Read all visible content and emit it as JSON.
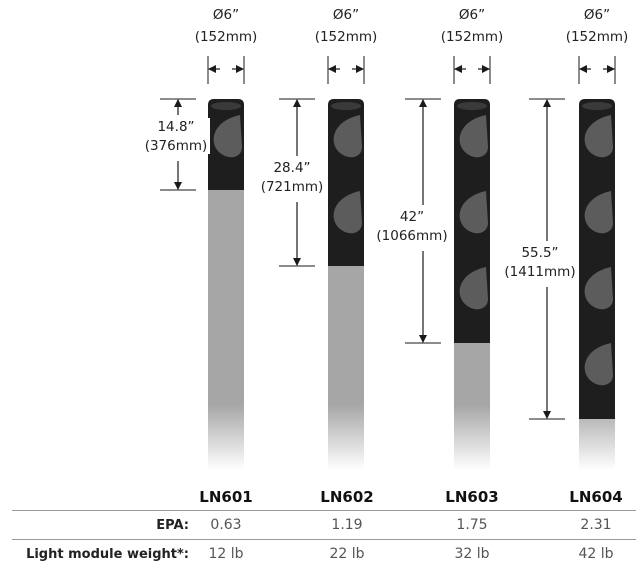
{
  "products": [
    {
      "model": "LN601",
      "diameter_in": "Ø6”",
      "diameter_mm": "(152mm)",
      "height_in": "14.8”",
      "height_mm": "(376mm)",
      "epa": "0.63",
      "weight": "12 lb",
      "cutouts": 1
    },
    {
      "model": "LN602",
      "diameter_in": "Ø6”",
      "diameter_mm": "(152mm)",
      "height_in": "28.4”",
      "height_mm": "(721mm)",
      "epa": "1.19",
      "weight": "22 lb",
      "cutouts": 2
    },
    {
      "model": "LN603",
      "diameter_in": "Ø6”",
      "diameter_mm": "(152mm)",
      "height_in": "42”",
      "height_mm": "(1066mm)",
      "epa": "1.75",
      "weight": "32 lb",
      "cutouts": 3
    },
    {
      "model": "LN604",
      "diameter_in": "Ø6”",
      "diameter_mm": "(152mm)",
      "height_in": "55.5”",
      "height_mm": "(1411mm)",
      "epa": "2.31",
      "weight": "42 lb",
      "cutouts": 4
    }
  ],
  "table": {
    "epa_label": "EPA:",
    "weight_label": "Light module weight*:"
  },
  "colors": {
    "module": "#1e1e1e",
    "pole": "#a6a6a6",
    "dimension_line": "#1a1a1a"
  }
}
